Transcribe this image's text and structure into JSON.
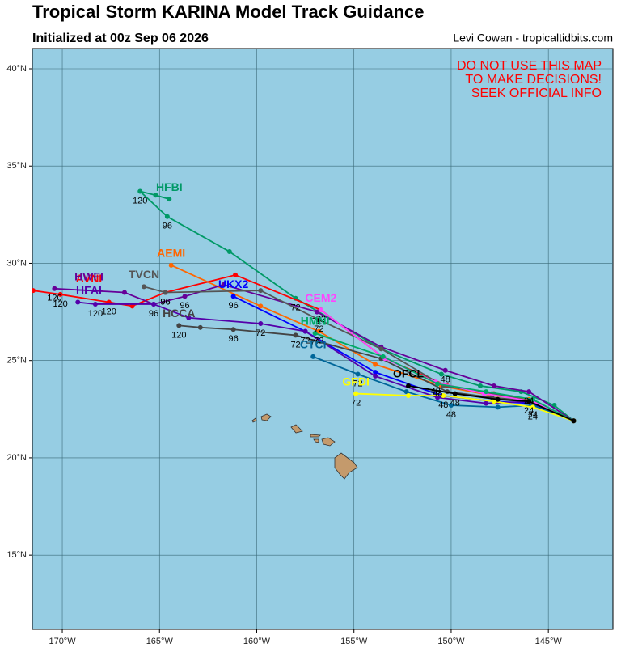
{
  "chart_data": {
    "type": "line",
    "title": "Tropical Storm KARINA Model Track Guidance",
    "subtitle": "Initialized at 00z Sep 06 2026",
    "credit": "Levi Cowan - tropicaltidbits.com",
    "warning": [
      "DO NOT USE THIS MAP",
      "TO MAKE DECISIONS!",
      "SEEK OFFICIAL INFO"
    ],
    "xlim": [
      -171.54,
      -141.68
    ],
    "ylim": [
      11.18,
      41.04
    ],
    "xticks": [
      {
        "value": -170,
        "label": "170°W"
      },
      {
        "value": -165,
        "label": "165°W"
      },
      {
        "value": -160,
        "label": "160°W"
      },
      {
        "value": -155,
        "label": "155°W"
      },
      {
        "value": -150,
        "label": "150°W"
      },
      {
        "value": -145,
        "label": "145°W"
      }
    ],
    "yticks": [
      {
        "value": 15,
        "label": "15°N"
      },
      {
        "value": 20,
        "label": "20°N"
      },
      {
        "value": 25,
        "label": "25°N"
      },
      {
        "value": 30,
        "label": "30°N"
      },
      {
        "value": 35,
        "label": "35°N"
      },
      {
        "value": 40,
        "label": "40°N"
      }
    ],
    "grid": true,
    "series": [
      {
        "name": "HFBI",
        "color": "#009966",
        "x": [
          -143.7,
          -144.7,
          -146.4,
          -148.5,
          -150.5,
          -153.6,
          -158.0,
          -161.4,
          -164.6,
          -166.0,
          -165.2,
          -164.5
        ],
        "values": [
          21.9,
          22.7,
          23.4,
          23.7,
          24.3,
          25.6,
          28.2,
          30.6,
          32.4,
          33.7,
          33.5,
          33.3
        ],
        "point_labels": [
          null,
          null,
          null,
          null,
          null,
          null,
          72,
          null,
          96,
          120,
          null,
          null
        ]
      },
      {
        "name": "AEMI",
        "color": "#ff6600",
        "x": [
          -143.7,
          -146.0,
          -147.9,
          -150.5,
          -153.9,
          -156.8,
          -159.8,
          -164.4
        ],
        "values": [
          21.9,
          23.0,
          23.2,
          23.7,
          24.8,
          26.5,
          27.8,
          29.9
        ],
        "point_labels": [
          null,
          null,
          null,
          null,
          null,
          72,
          null,
          null
        ]
      },
      {
        "name": "AVNI",
        "color": "#ff0000",
        "x": [
          -143.7,
          -145.8,
          -147.8,
          -150.2,
          -153.4,
          -156.7,
          -161.1,
          -164.7,
          -166.4,
          -167.6,
          -170.1,
          -171.5
        ],
        "values": [
          21.9,
          22.9,
          23.3,
          23.7,
          25.1,
          27.6,
          29.4,
          28.5,
          27.8,
          28.0,
          28.4,
          28.6
        ],
        "point_labels": [
          null,
          null,
          null,
          null,
          null,
          72,
          null,
          96,
          null,
          120,
          120,
          null
        ]
      },
      {
        "name": "UKX2",
        "color": "#0000ff",
        "x": [
          -143.7,
          -145.9,
          -147.8,
          -150.5,
          -153.9,
          -157.5,
          -161.2
        ],
        "values": [
          21.9,
          22.8,
          22.9,
          23.2,
          24.4,
          26.5,
          28.3
        ],
        "point_labels": [
          null,
          null,
          null,
          null,
          null,
          72,
          96
        ]
      },
      {
        "name": "HWFI",
        "color": "#660099",
        "x": [
          -143.7,
          -146.0,
          -147.8,
          -150.3,
          -153.6,
          -156.9,
          -161.7,
          -163.7,
          -165.3,
          -166.8,
          -170.4
        ],
        "values": [
          21.9,
          23.4,
          23.7,
          24.5,
          25.7,
          27.5,
          28.9,
          28.3,
          27.9,
          28.5,
          28.7
        ],
        "point_labels": [
          null,
          24,
          null,
          48,
          null,
          72,
          null,
          96,
          null,
          null,
          120
        ]
      },
      {
        "name": "HFAI",
        "color": "#5500aa",
        "x": [
          -143.7,
          -145.9,
          -148.2,
          -150.7,
          -153.9,
          -157.5,
          -159.8,
          -163.5,
          -165.3,
          -168.3,
          -169.2
        ],
        "values": [
          21.9,
          22.9,
          22.8,
          23.1,
          24.2,
          26.5,
          26.9,
          27.2,
          27.9,
          27.9,
          28.0
        ],
        "point_labels": [
          null,
          null,
          null,
          null,
          null,
          null,
          72,
          null,
          96,
          120,
          null
        ]
      },
      {
        "name": "TVCN",
        "color": "#555555",
        "x": [
          -143.7,
          -145.8,
          -147.9,
          -150.4,
          -153.6,
          -156.8,
          -159.8,
          -164.7,
          -165.8
        ],
        "values": [
          21.9,
          22.9,
          23.3,
          23.7,
          25.6,
          27.1,
          28.6,
          28.5,
          28.8
        ],
        "point_labels": [
          null,
          null,
          null,
          null,
          null,
          72,
          null,
          96,
          null
        ]
      },
      {
        "name": "HCCA",
        "color": "#444444",
        "x": [
          -143.7,
          -145.8,
          -147.9,
          -150.2,
          -153.6,
          -158.0,
          -161.2,
          -162.9,
          -164.0
        ],
        "values": [
          21.9,
          22.9,
          23.1,
          23.4,
          25.1,
          26.3,
          26.6,
          26.7,
          26.8
        ],
        "point_labels": [
          null,
          null,
          null,
          null,
          null,
          72,
          96,
          null,
          120
        ]
      },
      {
        "name": "CEM2",
        "color": "#ff44ff",
        "x": [
          -143.7,
          -145.8,
          -148.3,
          -150.8,
          -153.4,
          -156.7
        ],
        "values": [
          21.9,
          22.9,
          23.3,
          23.9,
          25.1,
          27.6
        ],
        "point_labels": [
          null,
          null,
          null,
          48,
          null,
          72
        ]
      },
      {
        "name": "HMNI",
        "color": "#00aa66",
        "x": [
          -143.7,
          -145.8,
          -148.2,
          -150.7,
          -153.5,
          -157.0
        ],
        "values": [
          21.9,
          23.0,
          23.4,
          23.8,
          25.2,
          26.4
        ],
        "point_labels": [
          null,
          null,
          null,
          48,
          null,
          72
        ]
      },
      {
        "name": "CTCI",
        "color": "#006699",
        "x": [
          -143.7,
          -145.8,
          -147.6,
          -150.0,
          -152.3,
          -154.8,
          -157.1
        ],
        "values": [
          21.9,
          22.7,
          22.6,
          22.7,
          23.4,
          24.3,
          25.2
        ],
        "point_labels": [
          null,
          24,
          null,
          48,
          null,
          72,
          null
        ]
      },
      {
        "name": "GFDI",
        "color": "#ffff00",
        "x": [
          -143.7,
          -145.8,
          -147.8,
          -150.4,
          -152.2,
          -154.9
        ],
        "values": [
          21.9,
          22.6,
          22.9,
          23.2,
          23.2,
          23.3
        ],
        "point_labels": [
          null,
          24,
          null,
          48,
          null,
          72
        ]
      },
      {
        "name": "OFCL",
        "color": "#000000",
        "x": [
          -143.7,
          -146.0,
          -147.6,
          -149.8,
          -152.2
        ],
        "values": [
          21.9,
          22.9,
          23.0,
          23.3,
          23.7
        ],
        "point_labels": [
          null,
          24,
          null,
          48,
          null
        ]
      }
    ]
  }
}
